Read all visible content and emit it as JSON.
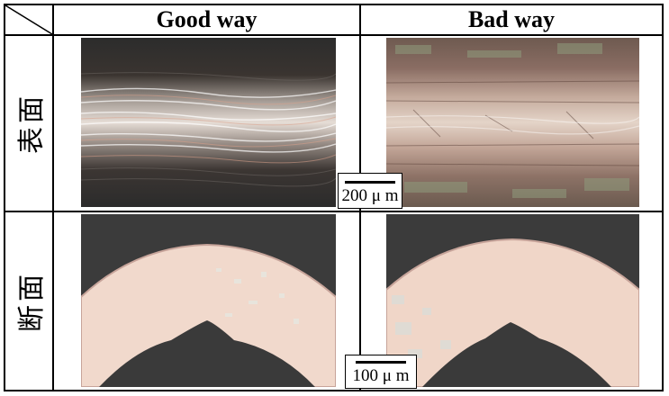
{
  "columns": {
    "good": "Good way",
    "bad": "Bad way"
  },
  "rows": {
    "surface": "表面",
    "section": "断面"
  },
  "scale_bars": {
    "surface": "200 μ m",
    "section": "100 μ m"
  }
}
